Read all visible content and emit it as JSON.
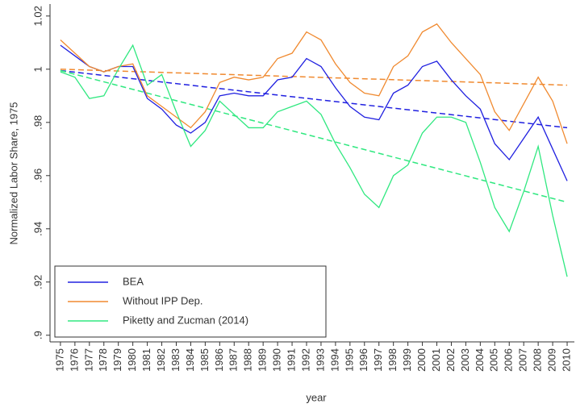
{
  "chart_data": {
    "type": "line",
    "x_label": "year",
    "y_label": "Normalized Labor Share, 1975",
    "x": [
      1975,
      1976,
      1977,
      1978,
      1979,
      1980,
      1981,
      1982,
      1983,
      1984,
      1985,
      1986,
      1987,
      1988,
      1989,
      1990,
      1991,
      1992,
      1993,
      1994,
      1995,
      1996,
      1997,
      1998,
      1999,
      2000,
      2001,
      2002,
      2003,
      2004,
      2005,
      2006,
      2007,
      2008,
      2009,
      2010
    ],
    "xlim": [
      1974.28,
      2010.5
    ],
    "xticks": [
      1975,
      1976,
      1977,
      1978,
      1979,
      1980,
      1981,
      1982,
      1983,
      1984,
      1985,
      1986,
      1987,
      1988,
      1989,
      1990,
      1991,
      1992,
      1993,
      1994,
      1995,
      1996,
      1997,
      1998,
      1999,
      2000,
      2001,
      2002,
      2003,
      2004,
      2005,
      2006,
      2007,
      2008,
      2009,
      2010
    ],
    "ylim": [
      0.8975,
      1.0245
    ],
    "yticks": [
      {
        "value": 0.9,
        "label": ".9"
      },
      {
        "value": 0.92,
        "label": ".92"
      },
      {
        "value": 0.94,
        "label": ".94"
      },
      {
        "value": 0.96,
        "label": ".96"
      },
      {
        "value": 0.98,
        "label": ".98"
      },
      1,
      1.02
    ],
    "legend": "lower left",
    "series": [
      {
        "name": "BEA",
        "color": "#2020e0",
        "values": [
          1.009,
          1.005,
          1.001,
          0.999,
          1.001,
          1.001,
          0.989,
          0.985,
          0.979,
          0.976,
          0.98,
          0.99,
          0.991,
          0.99,
          0.99,
          0.996,
          0.997,
          1.004,
          1.001,
          0.993,
          0.986,
          0.982,
          0.981,
          0.991,
          0.994,
          1.001,
          1.003,
          0.996,
          0.99,
          0.985,
          0.972,
          0.966,
          0.974,
          0.982,
          0.97,
          0.958
        ]
      },
      {
        "name": "Without IPP Dep.",
        "color": "#f08a30",
        "values": [
          1.011,
          1.006,
          1.001,
          0.999,
          1.001,
          1.002,
          0.99,
          0.986,
          0.982,
          0.978,
          0.984,
          0.995,
          0.997,
          0.996,
          0.997,
          1.004,
          1.006,
          1.014,
          1.011,
          1.002,
          0.995,
          0.991,
          0.99,
          1.001,
          1.005,
          1.014,
          1.017,
          1.01,
          1.004,
          0.998,
          0.984,
          0.977,
          0.987,
          0.997,
          0.988,
          0.972
        ]
      },
      {
        "name": "Piketty and Zucman (2014)",
        "color": "#30e880",
        "values": [
          0.999,
          0.997,
          0.989,
          0.99,
          1.0,
          1.009,
          0.994,
          0.998,
          0.984,
          0.971,
          0.977,
          0.988,
          0.983,
          0.978,
          0.978,
          0.984,
          0.986,
          0.988,
          0.983,
          0.972,
          0.963,
          0.953,
          0.948,
          0.96,
          0.964,
          0.976,
          0.982,
          0.982,
          0.98,
          0.965,
          0.948,
          0.939,
          0.954,
          0.971,
          0.945,
          0.922
        ]
      }
    ],
    "trends": [
      {
        "color": "#2020e0",
        "x": [
          1975,
          2010
        ],
        "values": [
          0.9995,
          0.978
        ]
      },
      {
        "color": "#f08a30",
        "x": [
          1975,
          2010
        ],
        "values": [
          1.0,
          0.994
        ]
      },
      {
        "color": "#30e880",
        "x": [
          1975,
          2010
        ],
        "values": [
          0.9995,
          0.95
        ]
      }
    ]
  }
}
